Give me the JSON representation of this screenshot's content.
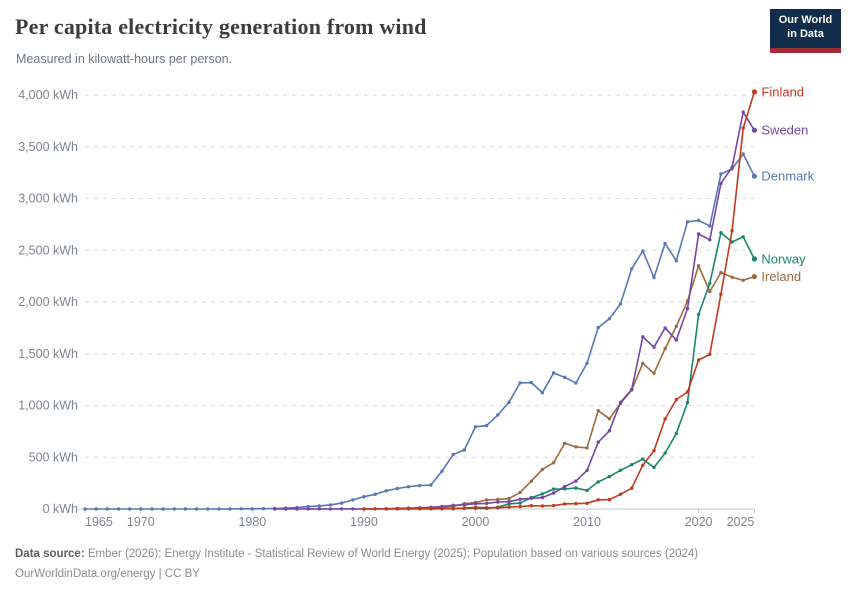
{
  "header": {
    "title": "Per capita electricity generation from wind",
    "subtitle": "Measured in kilowatt-hours per person.",
    "logo": {
      "line1": "Our World",
      "line2": "in Data"
    }
  },
  "footer": {
    "datasource_label": "Data source:",
    "datasource_text": "Ember (2026); Energy Institute - Statistical Review of World Energy (2025); Population based on various sources (2024)",
    "attribution": "OurWorldinData.org/energy | CC BY"
  },
  "chart_data": {
    "type": "line",
    "title": "Per capita electricity generation from wind",
    "unit": "kWh",
    "grid": "horizontal-dashed",
    "legend_position": "right-end-labels",
    "x_axis": {
      "min": 1965,
      "max": 2025,
      "ticks": [
        1965,
        1970,
        1980,
        1990,
        2000,
        2010,
        2020,
        2025
      ],
      "tick_labels": [
        "1965",
        "1970",
        "1980",
        "1990",
        "2000",
        "2010",
        "2020",
        "2025"
      ]
    },
    "y_axis": {
      "min": 0,
      "max": 4000,
      "ticks": [
        0,
        500,
        1000,
        1500,
        2000,
        2500,
        3000,
        3500,
        4000
      ],
      "tick_labels": [
        "0 kWh",
        "500 kWh",
        "1,000 kWh",
        "1,500 kWh",
        "2,000 kWh",
        "2,500 kWh",
        "3,000 kWh",
        "3,500 kWh",
        "4,000 kWh"
      ]
    },
    "series": [
      {
        "name": "Finland",
        "color": "#c23a1e",
        "start_year": 1990,
        "values": [
          0,
          1,
          1,
          1,
          2,
          2,
          2,
          3,
          4,
          9,
          15,
          13,
          12,
          18,
          23,
          32,
          29,
          33,
          49,
          52,
          55,
          89,
          91,
          142,
          201,
          423,
          564,
          871,
          1058,
          1130,
          1440,
          1495,
          2075,
          2690,
          3680,
          4030
        ]
      },
      {
        "name": "Sweden",
        "color": "#7446a5",
        "start_year": 1982,
        "values": [
          0,
          0,
          0,
          1,
          1,
          1,
          1,
          1,
          1,
          2,
          3,
          6,
          9,
          12,
          16,
          24,
          36,
          41,
          51,
          54,
          68,
          71,
          95,
          103,
          110,
          155,
          216,
          270,
          373,
          645,
          756,
          1031,
          1155,
          1664,
          1563,
          1750,
          1632,
          1936,
          2657,
          2601,
          3146,
          3302,
          3835,
          3660
        ]
      },
      {
        "name": "Denmark",
        "color": "#5878b3",
        "start_year": 1965,
        "values": [
          0,
          0,
          0,
          0,
          0,
          0,
          0,
          0,
          0,
          0,
          0,
          0,
          1,
          1,
          2,
          2,
          3,
          5,
          9,
          14,
          23,
          30,
          40,
          57,
          88,
          119,
          142,
          176,
          198,
          215,
          226,
          232,
          366,
          527,
          570,
          794,
          806,
          908,
          1032,
          1218,
          1221,
          1124,
          1314,
          1272,
          1217,
          1408,
          1753,
          1838,
          1982,
          2321,
          2494,
          2237,
          2566,
          2399,
          2775,
          2788,
          2734,
          3237,
          3286,
          3430,
          3215
        ]
      },
      {
        "name": "Norway",
        "color": "#18866c",
        "start_year": 1993,
        "values": [
          2,
          2,
          2,
          2,
          2,
          3,
          6,
          7,
          6,
          17,
          49,
          57,
          110,
          146,
          192,
          194,
          203,
          180,
          262,
          313,
          374,
          428,
          482,
          401,
          540,
          729,
          1028,
          1880,
          2181,
          2670,
          2580,
          2630,
          2415
        ]
      },
      {
        "name": "Ireland",
        "color": "#9c6b3e",
        "start_year": 1992,
        "values": [
          1,
          4,
          5,
          5,
          6,
          14,
          24,
          51,
          63,
          88,
          92,
          100,
          160,
          269,
          383,
          447,
          635,
          600,
          590,
          950,
          872,
          1020,
          1150,
          1408,
          1311,
          1550,
          1764,
          2010,
          2350,
          2100,
          2285,
          2240,
          2210,
          2245
        ]
      }
    ]
  }
}
